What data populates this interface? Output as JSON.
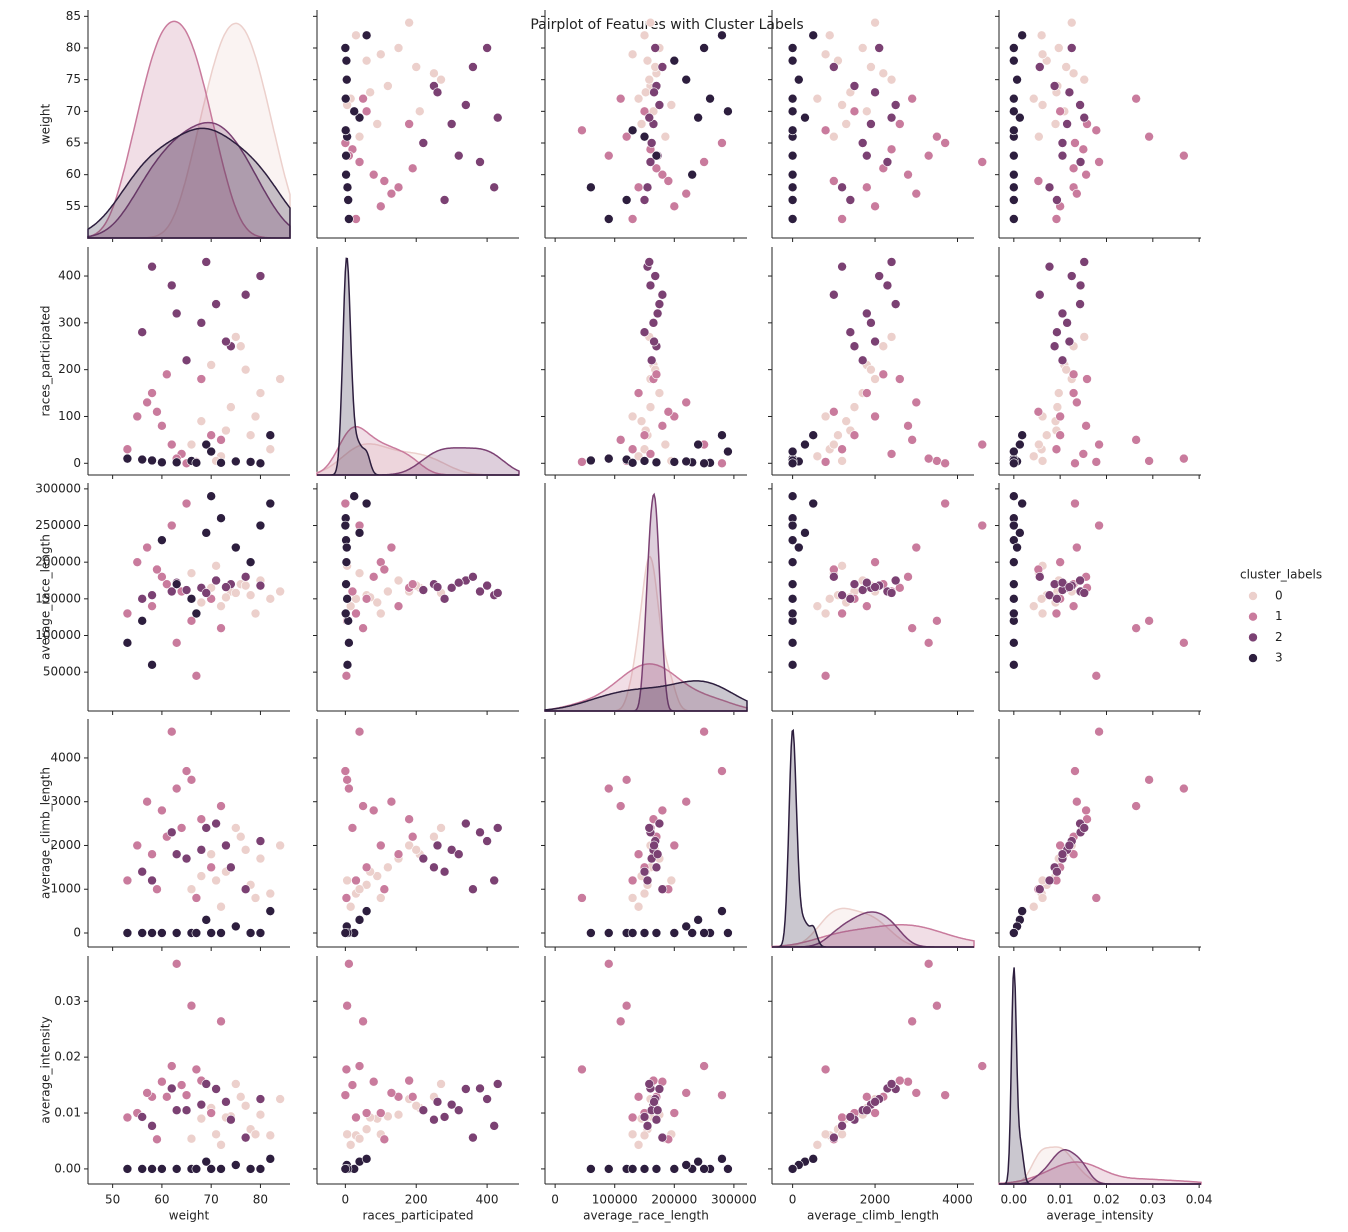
{
  "chart_data": {
    "type": "scatter",
    "title": "Pairplot of Features with Cluster Labels",
    "features": [
      "weight",
      "races_participated",
      "average_race_length",
      "average_climb_length",
      "average_intensity"
    ],
    "axes": [
      {
        "xlim": [
          45,
          86
        ],
        "xticks": [
          50,
          60,
          70,
          80
        ],
        "ylim": [
          50,
          86
        ],
        "yticks": [
          55,
          60,
          65,
          70,
          75,
          80,
          85
        ]
      },
      {
        "xlim": [
          -80,
          490
        ],
        "xticks": [
          0,
          200,
          400
        ],
        "ylim": [
          -25,
          462
        ],
        "yticks": [
          0,
          100,
          200,
          300,
          400
        ]
      },
      {
        "xlim": [
          -17000,
          322000
        ],
        "xticks": [
          0,
          100000,
          200000,
          300000
        ],
        "ylim": [
          -3000,
          308000
        ],
        "yticks": [
          50000,
          100000,
          150000,
          200000,
          250000,
          300000
        ]
      },
      {
        "xlim": [
          -500,
          4400
        ],
        "xticks": [
          0,
          2000,
          4000
        ],
        "ylim": [
          -320,
          4890
        ],
        "yticks": [
          0,
          1000,
          2000,
          3000,
          4000
        ]
      },
      {
        "xlim": [
          -0.0032,
          0.0404
        ],
        "xticks": [
          {
            "value": 0,
            "label": "0.00"
          },
          {
            "value": 0.01,
            "label": "0.01"
          },
          {
            "value": 0.02,
            "label": "0.02"
          },
          {
            "value": 0.03,
            "label": "0.03"
          },
          {
            "value": 0.04,
            "label": "0.04"
          }
        ],
        "ylim": [
          -0.0027,
          0.0381
        ],
        "yticks": [
          {
            "value": 0,
            "label": "0.00"
          },
          {
            "value": 0.01,
            "label": "0.01"
          },
          {
            "value": 0.02,
            "label": "0.02"
          },
          {
            "value": 0.03,
            "label": "0.03"
          }
        ]
      }
    ],
    "legend_title": "cluster_labels",
    "series": [
      {
        "name": "0",
        "color": "#ecd0cc",
        "values": [
          [
            74,
            120,
            160000,
            1500,
            0.0094
          ],
          [
            78,
            60,
            155000,
            1100,
            0.0071
          ],
          [
            70,
            210,
            165000,
            1800,
            0.0109
          ],
          [
            82,
            30,
            150000,
            900,
            0.006
          ],
          [
            76,
            250,
            170000,
            2200,
            0.0129
          ],
          [
            68,
            90,
            145000,
            1300,
            0.009
          ],
          [
            80,
            150,
            175000,
            1700,
            0.0097
          ],
          [
            72,
            15,
            140000,
            600,
            0.0043
          ],
          [
            84,
            180,
            160000,
            2000,
            0.0125
          ],
          [
            66,
            40,
            185000,
            1000,
            0.0054
          ],
          [
            75,
            270,
            158000,
            2400,
            0.0152
          ],
          [
            79,
            100,
            130000,
            800,
            0.0062
          ],
          [
            71,
            5,
            195000,
            1200,
            0.0062
          ],
          [
            77,
            200,
            168000,
            1900,
            0.0113
          ],
          [
            73,
            70,
            152000,
            1400,
            0.0092
          ]
        ]
      },
      {
        "name": "1",
        "color": "#c97b9d",
        "values": [
          [
            64,
            20,
            160000,
            2400,
            0.015
          ],
          [
            60,
            80,
            180000,
            2800,
            0.0156
          ],
          [
            58,
            150,
            140000,
            1800,
            0.0129
          ],
          [
            66,
            5,
            120000,
            3500,
            0.0292
          ],
          [
            62,
            40,
            250000,
            4600,
            0.0184
          ],
          [
            55,
            100,
            200000,
            2000,
            0.01
          ],
          [
            68,
            180,
            165000,
            2600,
            0.0158
          ],
          [
            63,
            10,
            90000,
            3300,
            0.0367
          ],
          [
            70,
            60,
            150000,
            1500,
            0.01
          ],
          [
            57,
            130,
            220000,
            3000,
            0.0136
          ],
          [
            65,
            0,
            280000,
            3700,
            0.0132
          ],
          [
            53,
            30,
            130000,
            1200,
            0.0092
          ],
          [
            61,
            190,
            170000,
            2200,
            0.0129
          ],
          [
            72,
            50,
            110000,
            2900,
            0.0264
          ],
          [
            59,
            110,
            190000,
            1000,
            0.0053
          ],
          [
            67,
            3,
            45000,
            800,
            0.0178
          ]
        ]
      },
      {
        "name": "2",
        "color": "#7b4173",
        "values": [
          [
            68,
            300,
            165000,
            1900,
            0.0115
          ],
          [
            62,
            380,
            160000,
            2300,
            0.0144
          ],
          [
            74,
            250,
            170000,
            1500,
            0.0088
          ],
          [
            58,
            420,
            155000,
            1200,
            0.0077
          ],
          [
            71,
            340,
            175000,
            2500,
            0.0143
          ],
          [
            65,
            220,
            162000,
            1700,
            0.0105
          ],
          [
            80,
            400,
            168000,
            2100,
            0.0125
          ],
          [
            56,
            280,
            150000,
            1400,
            0.0093
          ],
          [
            77,
            360,
            180000,
            1000,
            0.0056
          ],
          [
            69,
            430,
            158000,
            2400,
            0.0152
          ],
          [
            63,
            320,
            172000,
            1800,
            0.0105
          ],
          [
            73,
            260,
            166000,
            2000,
            0.012
          ]
        ]
      },
      {
        "name": "3",
        "color": "#2d1e3e",
        "values": [
          [
            60,
            2,
            230000,
            0,
            0
          ],
          [
            66,
            5,
            150000,
            0,
            0
          ],
          [
            72,
            1,
            260000,
            0,
            0
          ],
          [
            56,
            8,
            120000,
            0,
            0
          ],
          [
            78,
            3,
            200000,
            0,
            0
          ],
          [
            69,
            40,
            240000,
            300,
            0.0013
          ],
          [
            63,
            2,
            170000,
            0,
            0
          ],
          [
            82,
            60,
            280000,
            500,
            0.0018
          ],
          [
            53,
            10,
            90000,
            0,
            0
          ],
          [
            75,
            4,
            220000,
            150,
            0.0007
          ],
          [
            67,
            1,
            130000,
            0,
            0
          ],
          [
            70,
            25,
            290000,
            0,
            0
          ],
          [
            58,
            6,
            60000,
            0,
            0
          ],
          [
            80,
            0,
            250000,
            0,
            0
          ]
        ]
      }
    ]
  }
}
